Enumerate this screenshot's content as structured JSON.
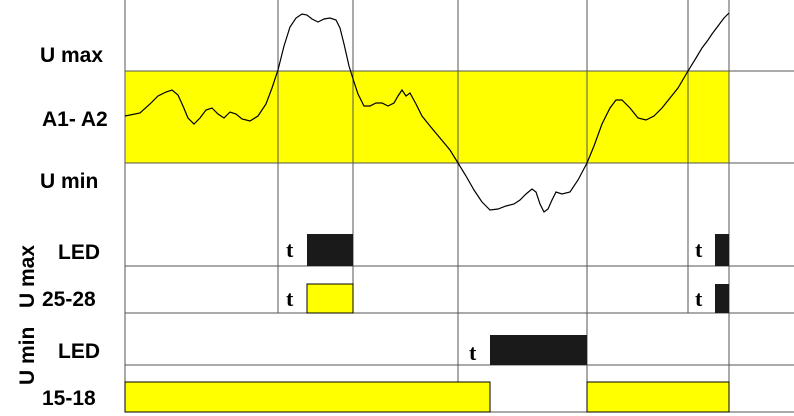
{
  "labels": {
    "u_max": "U max",
    "a1_a2": "A1- A2",
    "u_min": "U min",
    "group_u_max": "U max",
    "group_u_min": "U min",
    "row_led_1": "LED",
    "row_25_28": "25-28",
    "row_led_2": "LED",
    "row_15_18": "15-18"
  },
  "timer_labels": {
    "umax_led_t1": "t",
    "umax_led_t2": "t",
    "relay_25_28_t1": "t",
    "relay_25_28_t2": "t",
    "umin_led_t": "t"
  },
  "colors": {
    "band": "#ffff00",
    "led_on": "#1a1a1a",
    "relay_on": "#ffff00",
    "line": "#000000",
    "background": "#ffffff"
  }
}
